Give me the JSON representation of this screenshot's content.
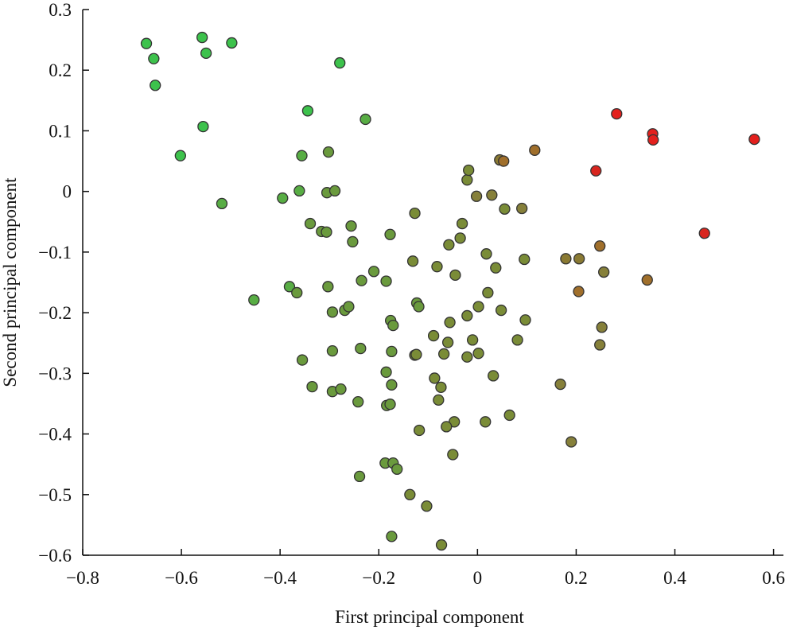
{
  "chart_data": {
    "type": "scatter",
    "x_label": "First principal component",
    "y_label": "Second principal component",
    "xlim": [
      -0.8,
      0.62
    ],
    "ylim": [
      -0.6,
      0.3
    ],
    "xticks": [
      {
        "value": -0.8,
        "label": "−0.8"
      },
      {
        "value": -0.6,
        "label": "−0.6"
      },
      {
        "value": -0.4,
        "label": "−0.4"
      },
      {
        "value": -0.2,
        "label": "−0.2"
      },
      0,
      0.2,
      0.4,
      0.6
    ],
    "yticks": [
      {
        "value": -0.6,
        "label": "−0.6"
      },
      {
        "value": -0.5,
        "label": "−0.5"
      },
      {
        "value": -0.4,
        "label": "−0.4"
      },
      {
        "value": -0.3,
        "label": "−0.3"
      },
      {
        "value": -0.2,
        "label": "−0.2"
      },
      {
        "value": -0.1,
        "label": "−0.1"
      },
      0,
      0.1,
      0.2,
      0.3
    ],
    "x": [
      -0.671,
      -0.656,
      -0.653,
      -0.558,
      -0.55,
      -0.498,
      -0.279,
      -0.344,
      -0.227,
      -0.556,
      -0.602,
      -0.518,
      -0.356,
      -0.302,
      -0.395,
      -0.361,
      -0.305,
      -0.289,
      -0.339,
      -0.316,
      -0.306,
      -0.256,
      -0.253,
      -0.453,
      -0.381,
      -0.366,
      -0.303,
      -0.235,
      -0.21,
      -0.185,
      -0.177,
      -0.127,
      -0.131,
      -0.082,
      -0.058,
      -0.031,
      -0.035,
      -0.045,
      -0.021,
      -0.018,
      -0.002,
      0.029,
      0.045,
      0.053,
      0.055,
      0.09,
      0.116,
      0.018,
      0.037,
      0.095,
      0.021,
      0.002,
      0.048,
      0.097,
      -0.021,
      -0.056,
      -0.01,
      0.002,
      -0.021,
      0.081,
      0.032,
      -0.06,
      -0.089,
      -0.068,
      -0.087,
      -0.074,
      -0.079,
      -0.047,
      -0.063,
      -0.05,
      0.016,
      0.065,
      -0.118,
      -0.123,
      -0.119,
      -0.176,
      -0.171,
      -0.174,
      -0.127,
      -0.124,
      -0.185,
      -0.174,
      -0.184,
      -0.177,
      -0.187,
      -0.171,
      -0.163,
      -0.239,
      -0.137,
      -0.103,
      -0.174,
      -0.073,
      -0.237,
      -0.242,
      -0.294,
      -0.294,
      -0.269,
      -0.261,
      -0.355,
      -0.335,
      -0.294,
      -0.277,
      0.168,
      0.19,
      0.248,
      0.252,
      0.256,
      0.206,
      0.179,
      0.205,
      0.248,
      0.344,
      0.24,
      0.282,
      0.355,
      0.356,
      0.46,
      0.561
    ],
    "y": [
      0.244,
      0.219,
      0.175,
      0.254,
      0.228,
      0.245,
      0.212,
      0.133,
      0.119,
      0.107,
      0.059,
      -0.02,
      0.059,
      0.065,
      -0.011,
      0.001,
      -0.002,
      0.001,
      -0.053,
      -0.066,
      -0.067,
      -0.057,
      -0.083,
      -0.179,
      -0.157,
      -0.167,
      -0.157,
      -0.147,
      -0.132,
      -0.148,
      -0.071,
      -0.036,
      -0.115,
      -0.124,
      -0.088,
      -0.053,
      -0.077,
      -0.138,
      0.019,
      0.035,
      -0.008,
      -0.006,
      0.052,
      0.05,
      -0.029,
      -0.028,
      0.068,
      -0.103,
      -0.126,
      -0.112,
      -0.167,
      -0.19,
      -0.196,
      -0.212,
      -0.205,
      -0.216,
      -0.245,
      -0.267,
      -0.273,
      -0.245,
      -0.304,
      -0.249,
      -0.238,
      -0.268,
      -0.308,
      -0.323,
      -0.344,
      -0.38,
      -0.388,
      -0.434,
      -0.38,
      -0.369,
      -0.394,
      -0.184,
      -0.19,
      -0.213,
      -0.221,
      -0.264,
      -0.27,
      -0.269,
      -0.298,
      -0.319,
      -0.353,
      -0.351,
      -0.448,
      -0.448,
      -0.458,
      -0.47,
      -0.5,
      -0.519,
      -0.569,
      -0.583,
      -0.259,
      -0.347,
      -0.263,
      -0.199,
      -0.196,
      -0.19,
      -0.278,
      -0.322,
      -0.33,
      -0.326,
      -0.318,
      -0.413,
      -0.253,
      -0.224,
      -0.133,
      -0.111,
      -0.111,
      -0.165,
      -0.09,
      -0.146,
      0.034,
      0.128,
      0.095,
      0.085,
      -0.069,
      0.086
    ],
    "colors": [
      "#3dc24c",
      "#3dc24c",
      "#3dc24c",
      "#3dc24c",
      "#3dc24c",
      "#3dc24c",
      "#3dc24c",
      "#3dc24c",
      "#58ad44",
      "#3dc24c",
      "#3dc24c",
      "#58ad44",
      "#58ad44",
      "#6a9a3d",
      "#58ad44",
      "#58ad44",
      "#6a9a3d",
      "#6a9a3d",
      "#6a9a3d",
      "#6a9a3d",
      "#6a9a3d",
      "#6a9a3d",
      "#6a9a3d",
      "#58ad44",
      "#58ad44",
      "#6a9a3d",
      "#6a9a3d",
      "#6a9a3d",
      "#6a9a3d",
      "#6a9a3d",
      "#6a9a3d",
      "#7a8c37",
      "#7a8c37",
      "#7a8c37",
      "#7a8c37",
      "#7a8c37",
      "#7a8c37",
      "#7a8c37",
      "#7a8c37",
      "#7a8c37",
      "#86803a",
      "#86803a",
      "#8a7a33",
      "#a06f2b",
      "#7a8c37",
      "#86803a",
      "#a06f2b",
      "#7a8c37",
      "#7a8c37",
      "#7a8c37",
      "#7a8c37",
      "#7a8c37",
      "#7a8c37",
      "#7a8c37",
      "#7a8c37",
      "#7a8c37",
      "#7a8c37",
      "#7a8c37",
      "#7a8c37",
      "#7a8c37",
      "#7a8c37",
      "#7a8c37",
      "#7a8c37",
      "#7a8c37",
      "#7a8c37",
      "#7a8c37",
      "#7a8c37",
      "#7a8c37",
      "#7a8c37",
      "#7a8c37",
      "#7a8c37",
      "#7a8c37",
      "#7a8c37",
      "#6a9a3d",
      "#6a9a3d",
      "#6a9a3d",
      "#6a9a3d",
      "#6a9a3d",
      "#7a8c37",
      "#7a8c37",
      "#6a9a3d",
      "#6a9a3d",
      "#6a9a3d",
      "#6a9a3d",
      "#6a9a3d",
      "#6a9a3d",
      "#6a9a3d",
      "#6a9a3d",
      "#7a8c37",
      "#7a8c37",
      "#6a9a3d",
      "#7a8c37",
      "#6a9a3d",
      "#6a9a3d",
      "#6a9a3d",
      "#6a9a3d",
      "#6a9a3d",
      "#6a9a3d",
      "#6a9a3d",
      "#6a9a3d",
      "#6a9a3d",
      "#6a9a3d",
      "#86803a",
      "#86803a",
      "#86803a",
      "#86803a",
      "#86803a",
      "#8a7a33",
      "#8a7a33",
      "#a06f2b",
      "#a06f2b",
      "#a06f2b",
      "#d8261f",
      "#e3201d",
      "#e3201d",
      "#e3201d",
      "#d8261f",
      "#e3201d"
    ]
  }
}
